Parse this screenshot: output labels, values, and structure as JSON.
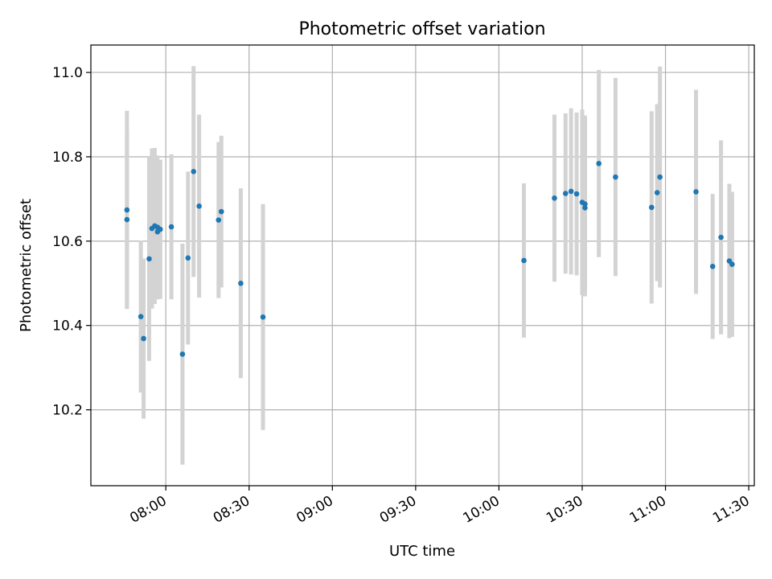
{
  "chart_data": {
    "type": "scatter",
    "title": "Photometric offset variation",
    "xlabel": "UTC time",
    "ylabel": "Photometric offset",
    "x_unit": "UTC clock time (HH:MM)",
    "xlim": [
      "07:33",
      "11:32"
    ],
    "ylim": [
      10.02,
      11.065
    ],
    "x_ticks": [
      "08:00",
      "08:30",
      "09:00",
      "09:30",
      "10:00",
      "10:30",
      "11:00",
      "11:30"
    ],
    "y_ticks": [
      "10.2",
      "10.4",
      "10.6",
      "10.8",
      "11.0"
    ],
    "grid": true,
    "legend": "none",
    "colors": {
      "points": "#1f77b4",
      "error_bars": "#d3d3d3",
      "grid": "#b0b0b0"
    },
    "series": [
      {
        "error_type": "vertical error bars",
        "points": [
          {
            "x": "07:46",
            "y": 10.674,
            "err": 0.235
          },
          {
            "x": "07:46",
            "y": 10.651,
            "err": 0.21
          },
          {
            "x": "07:51",
            "y": 10.421,
            "err": 0.18
          },
          {
            "x": "07:52",
            "y": 10.369,
            "err": 0.19
          },
          {
            "x": "07:54",
            "y": 10.558,
            "err": 0.242
          },
          {
            "x": "07:55",
            "y": 10.63,
            "err": 0.19
          },
          {
            "x": "07:56",
            "y": 10.636,
            "err": 0.185
          },
          {
            "x": "07:57",
            "y": 10.622,
            "err": 0.16
          },
          {
            "x": "07:57",
            "y": 10.633,
            "err": 0.17
          },
          {
            "x": "07:58",
            "y": 10.628,
            "err": 0.165
          },
          {
            "x": "08:02",
            "y": 10.634,
            "err": 0.172
          },
          {
            "x": "08:06",
            "y": 10.332,
            "err": 0.262
          },
          {
            "x": "08:08",
            "y": 10.56,
            "err": 0.205
          },
          {
            "x": "08:10",
            "y": 10.765,
            "err": 0.25
          },
          {
            "x": "08:12",
            "y": 10.683,
            "err": 0.217
          },
          {
            "x": "08:19",
            "y": 10.65,
            "err": 0.185
          },
          {
            "x": "08:20",
            "y": 10.67,
            "err": 0.18
          },
          {
            "x": "08:27",
            "y": 10.5,
            "err": 0.225
          },
          {
            "x": "08:35",
            "y": 10.42,
            "err": 0.268
          },
          {
            "x": "10:09",
            "y": 10.554,
            "err": 0.183
          },
          {
            "x": "10:20",
            "y": 10.702,
            "err": 0.198
          },
          {
            "x": "10:24",
            "y": 10.713,
            "err": 0.19
          },
          {
            "x": "10:26",
            "y": 10.718,
            "err": 0.197
          },
          {
            "x": "10:28",
            "y": 10.712,
            "err": 0.193
          },
          {
            "x": "10:30",
            "y": 10.692,
            "err": 0.22
          },
          {
            "x": "10:31",
            "y": 10.688,
            "err": 0.21
          },
          {
            "x": "10:31",
            "y": 10.679,
            "err": 0.21
          },
          {
            "x": "10:36",
            "y": 10.784,
            "err": 0.222
          },
          {
            "x": "10:42",
            "y": 10.752,
            "err": 0.235
          },
          {
            "x": "10:55",
            "y": 10.68,
            "err": 0.228
          },
          {
            "x": "10:57",
            "y": 10.715,
            "err": 0.21
          },
          {
            "x": "10:58",
            "y": 10.752,
            "err": 0.262
          },
          {
            "x": "11:11",
            "y": 10.717,
            "err": 0.242
          },
          {
            "x": "11:17",
            "y": 10.54,
            "err": 0.172
          },
          {
            "x": "11:20",
            "y": 10.609,
            "err": 0.23
          },
          {
            "x": "11:23",
            "y": 10.553,
            "err": 0.183
          },
          {
            "x": "11:24",
            "y": 10.545,
            "err": 0.172
          }
        ]
      }
    ]
  }
}
